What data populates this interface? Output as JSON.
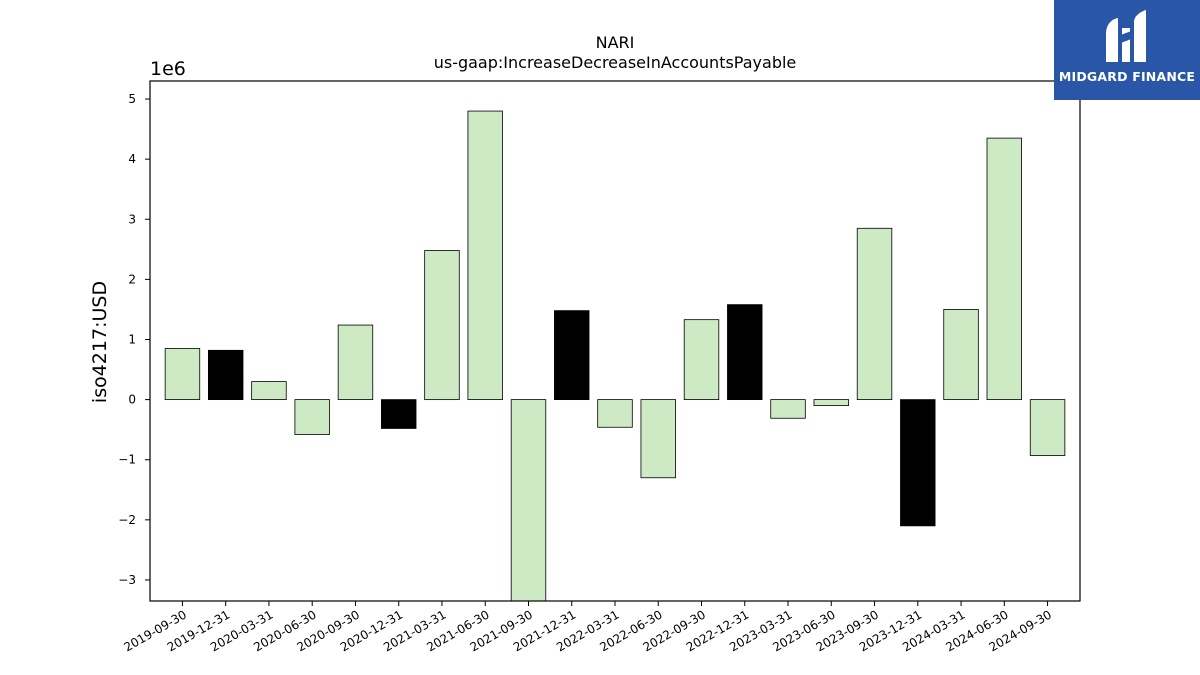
{
  "brand": {
    "name": "MIDGARD FINANCE",
    "bg_color": "#2a56a8",
    "icon": "midgard-mark-icon"
  },
  "chart_data": {
    "type": "bar",
    "title": "NARI",
    "subtitle": "us-gaap:IncreaseDecreaseInAccountsPayable",
    "ylabel": "iso4217:USD",
    "xlabel": "",
    "y_scale_label": "1e6",
    "ylim": [
      -3.35,
      5.3
    ],
    "yticks": [
      -3,
      -2,
      -1,
      0,
      1,
      2,
      3,
      4,
      5
    ],
    "ytick_labels": [
      "−3",
      "−2",
      "−1",
      "0",
      "1",
      "2",
      "3",
      "4",
      "5"
    ],
    "grid": false,
    "legend": false,
    "unit_multiplier": 1000000,
    "colors": {
      "default": "#cdeac5",
      "q4": "#000000"
    },
    "categories": [
      "2019-09-30",
      "2019-12-31",
      "2020-03-31",
      "2020-06-30",
      "2020-09-30",
      "2020-12-31",
      "2021-03-31",
      "2021-06-30",
      "2021-09-30",
      "2021-12-31",
      "2022-03-31",
      "2022-06-30",
      "2022-09-30",
      "2022-12-31",
      "2023-03-31",
      "2023-06-30",
      "2023-09-30",
      "2023-12-31",
      "2024-03-31",
      "2024-06-30",
      "2024-09-30"
    ],
    "values": [
      0.85,
      0.82,
      0.3,
      -0.58,
      1.24,
      -0.48,
      2.48,
      4.8,
      -3.6,
      1.48,
      -0.46,
      -1.3,
      1.33,
      1.58,
      -0.31,
      -0.1,
      2.85,
      -2.1,
      1.5,
      4.35,
      -0.93
    ],
    "bar_colors": [
      "#cdeac5",
      "#000000",
      "#cdeac5",
      "#cdeac5",
      "#cdeac5",
      "#000000",
      "#cdeac5",
      "#cdeac5",
      "#cdeac5",
      "#000000",
      "#cdeac5",
      "#cdeac5",
      "#cdeac5",
      "#000000",
      "#cdeac5",
      "#cdeac5",
      "#cdeac5",
      "#000000",
      "#cdeac5",
      "#cdeac5",
      "#cdeac5"
    ]
  }
}
